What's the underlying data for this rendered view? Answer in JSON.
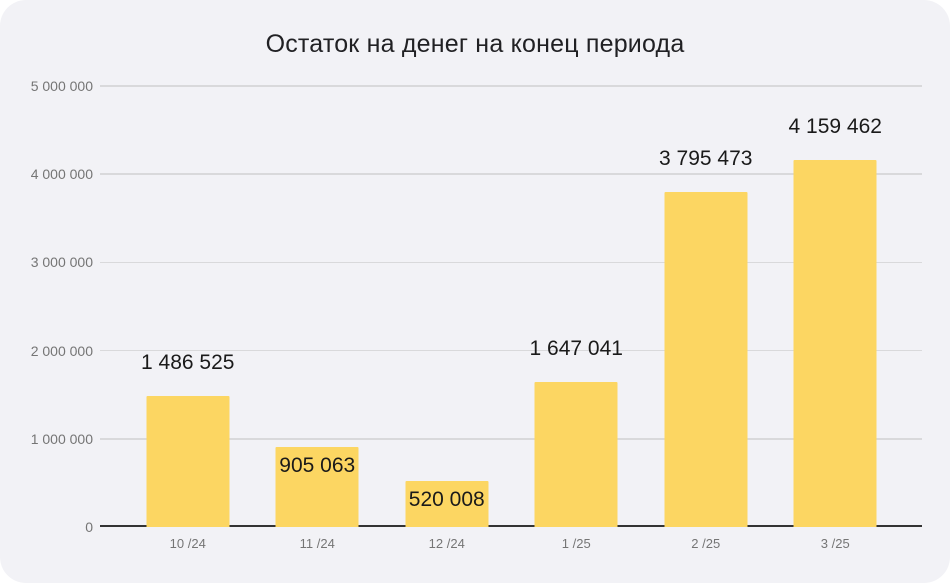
{
  "chart": {
    "title": "Остаток на денег на конец периода",
    "colors": {
      "bar": "#FCD662",
      "background": "#F2F2F6",
      "gridline": "#D9D9DB",
      "axis_baseline": "#333333",
      "tick_text": "#757575",
      "value_label_text": "#1A1A1A",
      "title_text": "#212124"
    }
  },
  "chart_data": {
    "type": "bar",
    "title": "Остаток на денег на конец периода",
    "categories": [
      "10 /24",
      "11 /24",
      "12 /24",
      "1 /25",
      "2 /25",
      "3 /25"
    ],
    "values": [
      1486525,
      905063,
      520008,
      1647041,
      3795473,
      4159462
    ],
    "value_labels": [
      "1 486 525",
      "905 063",
      "520 008",
      "1 647 041",
      "3 795 473",
      "4 159 462"
    ],
    "xlabel": "",
    "ylabel": "",
    "ylim": [
      0,
      5000000
    ],
    "ytick_step": 1000000,
    "yticks": [
      "0",
      "1 000 000",
      "2 000 000",
      "3 000 000",
      "4 000 000",
      "5 000 000"
    ],
    "grid": true,
    "legend": "none",
    "bar_color": "#FCD662"
  }
}
